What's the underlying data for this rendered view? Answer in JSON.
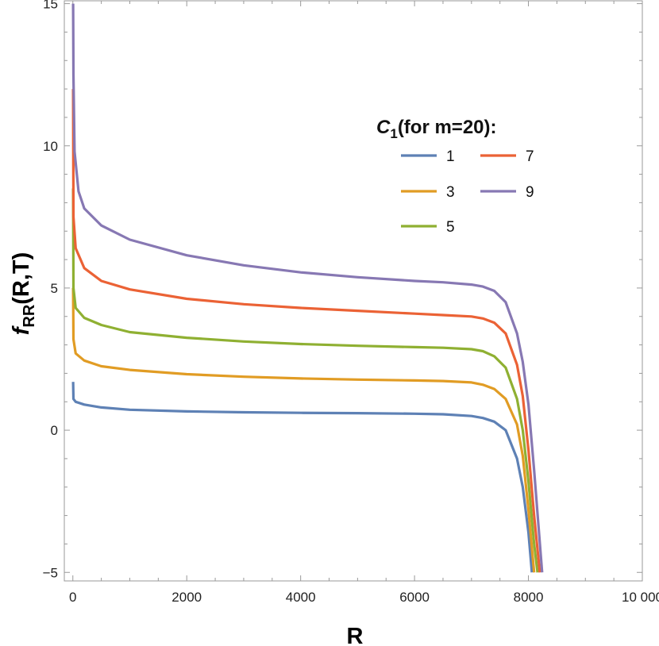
{
  "chart_data": {
    "type": "line",
    "xlabel": "R",
    "ylabel_main": "f",
    "ylabel_sub": "RR",
    "ylabel_args": "(R,T)",
    "xlim": [
      -150,
      10000
    ],
    "ylim": [
      -5.3,
      15.1
    ],
    "x_ticks": [
      {
        "value": 0,
        "label": "0"
      },
      {
        "value": 2000,
        "label": "2000"
      },
      {
        "value": 4000,
        "label": "4000"
      },
      {
        "value": 6000,
        "label": "6000"
      },
      {
        "value": 8000,
        "label": "8000"
      },
      {
        "value": 10000,
        "label": "10 000"
      }
    ],
    "y_ticks": [
      {
        "value": -5,
        "label": "−5"
      },
      {
        "value": 0,
        "label": "0"
      },
      {
        "value": 5,
        "label": "5"
      },
      {
        "value": 10,
        "label": "10"
      },
      {
        "value": 15,
        "label": "15"
      }
    ],
    "grid": false,
    "legend": {
      "placement": "top-right",
      "title_main": "C",
      "title_sub": "1",
      "title_rest": "(for m=20):"
    },
    "series": [
      {
        "name": "1",
        "color": "#5E81B5",
        "x": [
          5,
          10,
          50,
          200,
          500,
          1000,
          2000,
          3000,
          4000,
          5000,
          6000,
          6500,
          7000,
          7200,
          7400,
          7600,
          7800,
          7900,
          8000,
          8060
        ],
        "y": [
          1.7,
          1.1,
          1.0,
          0.9,
          0.8,
          0.72,
          0.66,
          0.63,
          0.61,
          0.6,
          0.58,
          0.56,
          0.5,
          0.43,
          0.3,
          0.0,
          -1.0,
          -2.0,
          -3.6,
          -5.0
        ]
      },
      {
        "name": "3",
        "color": "#E19C24",
        "x": [
          5,
          10,
          50,
          200,
          500,
          1000,
          2000,
          3000,
          4000,
          5000,
          6000,
          6500,
          7000,
          7200,
          7400,
          7600,
          7800,
          7900,
          8000,
          8100
        ],
        "y": [
          5.0,
          3.2,
          2.7,
          2.45,
          2.25,
          2.12,
          1.97,
          1.88,
          1.82,
          1.78,
          1.75,
          1.73,
          1.68,
          1.6,
          1.45,
          1.1,
          0.2,
          -0.9,
          -2.8,
          -5.0
        ]
      },
      {
        "name": "5",
        "color": "#8FB032",
        "x": [
          5,
          10,
          50,
          200,
          500,
          1000,
          2000,
          3000,
          4000,
          5000,
          6000,
          6500,
          7000,
          7200,
          7400,
          7600,
          7800,
          7900,
          8000,
          8100,
          8160
        ],
        "y": [
          8.5,
          5.0,
          4.3,
          3.95,
          3.7,
          3.45,
          3.25,
          3.12,
          3.03,
          2.97,
          2.92,
          2.9,
          2.85,
          2.78,
          2.6,
          2.2,
          1.1,
          0.0,
          -1.8,
          -4.0,
          -5.0
        ]
      },
      {
        "name": "7",
        "color": "#EB6235",
        "x": [
          5,
          10,
          50,
          200,
          500,
          1000,
          2000,
          3000,
          4000,
          5000,
          6000,
          6500,
          7000,
          7200,
          7400,
          7600,
          7800,
          7900,
          8000,
          8100,
          8200
        ],
        "y": [
          12.0,
          7.5,
          6.4,
          5.7,
          5.25,
          4.95,
          4.62,
          4.43,
          4.3,
          4.2,
          4.1,
          4.05,
          4.0,
          3.93,
          3.78,
          3.4,
          2.3,
          1.2,
          -0.7,
          -3.0,
          -5.0
        ]
      },
      {
        "name": "9",
        "color": "#8778B3",
        "x": [
          5,
          10,
          30,
          100,
          200,
          500,
          1000,
          2000,
          3000,
          4000,
          5000,
          6000,
          6500,
          7000,
          7200,
          7400,
          7600,
          7800,
          7900,
          8000,
          8100,
          8240
        ],
        "y": [
          15.0,
          12.5,
          9.8,
          8.4,
          7.8,
          7.2,
          6.7,
          6.15,
          5.8,
          5.55,
          5.38,
          5.25,
          5.2,
          5.12,
          5.05,
          4.9,
          4.5,
          3.4,
          2.4,
          0.9,
          -1.4,
          -5.0
        ]
      }
    ]
  }
}
